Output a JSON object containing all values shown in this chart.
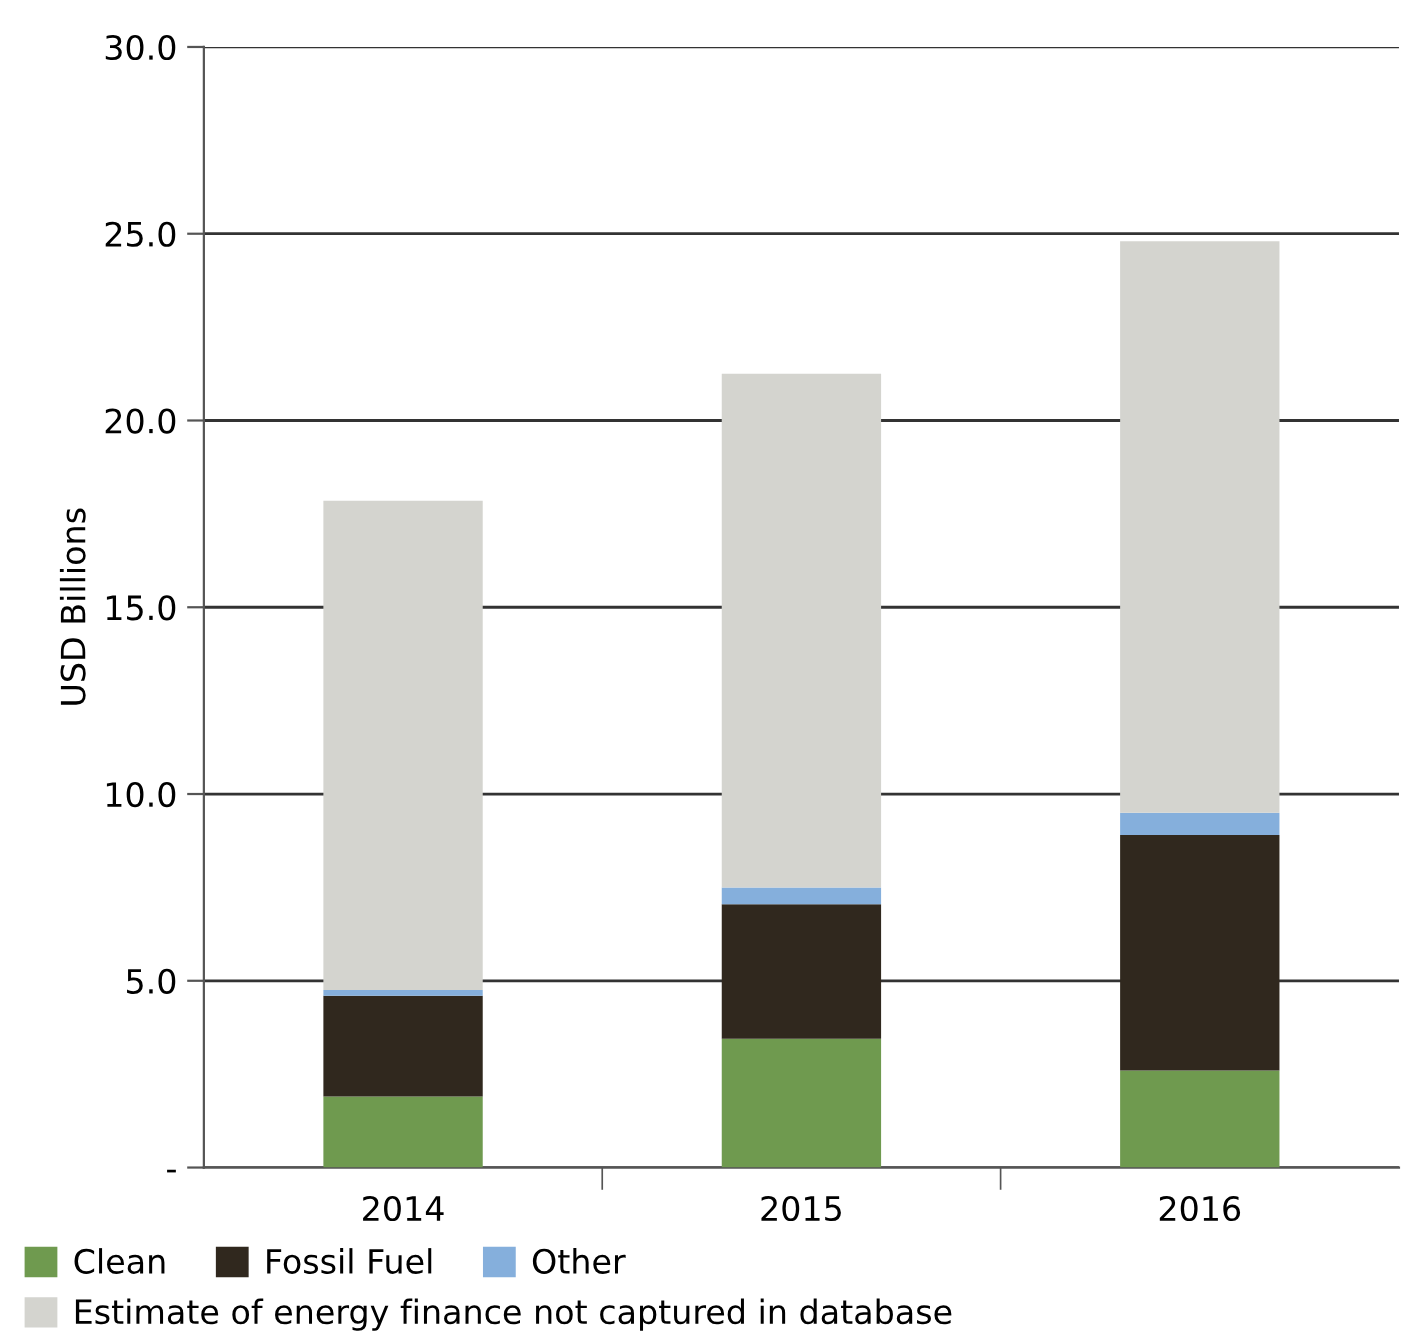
{
  "chart_data": {
    "type": "bar",
    "stacked": true,
    "ylabel": "USD Billions",
    "categories": [
      "2014",
      "2015",
      "2016"
    ],
    "series": [
      {
        "name": "Clean",
        "color": "#6f9a4f",
        "values": [
          1.9,
          3.45,
          2.6
        ]
      },
      {
        "name": "Fossil Fuel",
        "color": "#30281e",
        "values": [
          2.7,
          3.6,
          6.3
        ]
      },
      {
        "name": "Other",
        "color": "#85afdc",
        "values": [
          0.15,
          0.45,
          0.6
        ]
      },
      {
        "name": "Estimate of energy finance not captured in database",
        "color": "#d4d4cf",
        "values": [
          13.1,
          13.75,
          15.3
        ]
      }
    ],
    "ylim": [
      0,
      30
    ],
    "yticks": [
      {
        "value": 0,
        "label": "-"
      },
      {
        "value": 5,
        "label": "5.0"
      },
      {
        "value": 10,
        "label": "10.0"
      },
      {
        "value": 15,
        "label": "15.0"
      },
      {
        "value": 20,
        "label": "20.0"
      },
      {
        "value": 25,
        "label": "25.0"
      },
      {
        "value": 30,
        "label": "30.0"
      }
    ],
    "grid": "y",
    "legend": "bottom"
  }
}
